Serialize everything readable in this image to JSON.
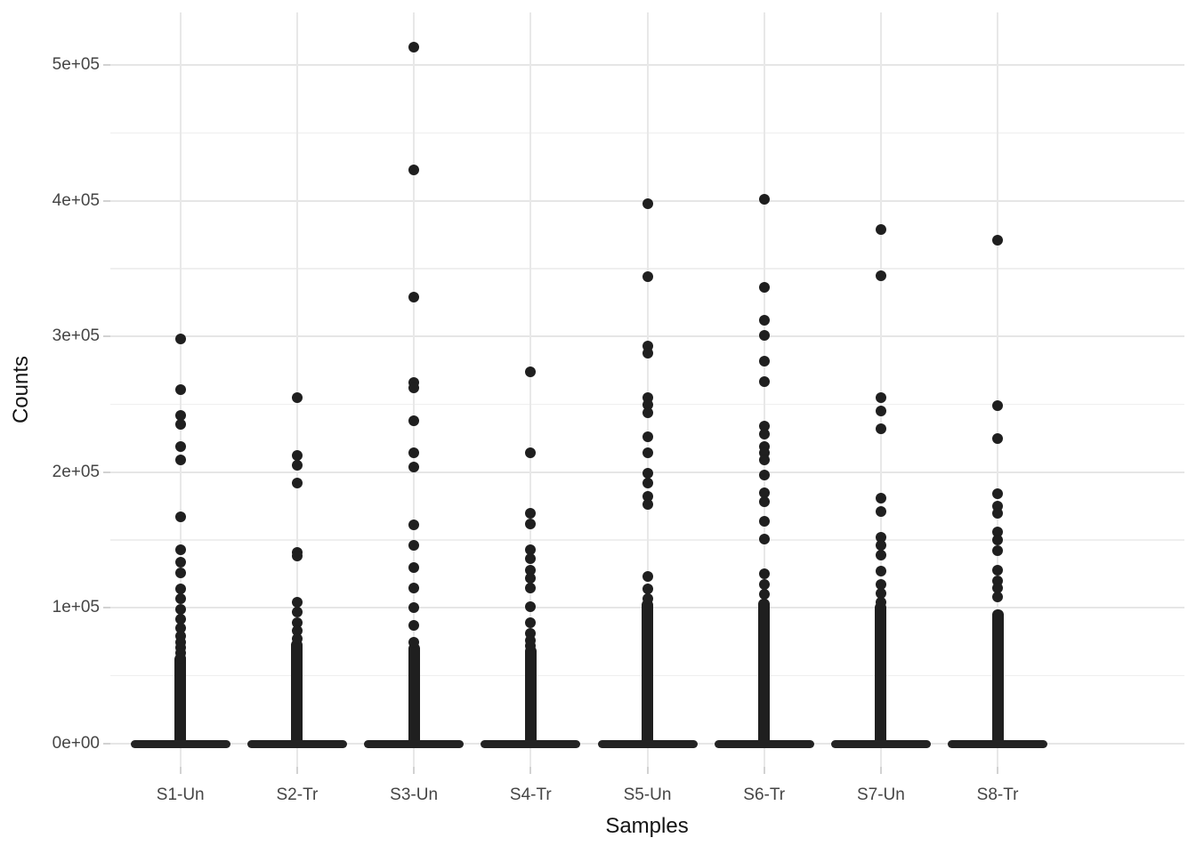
{
  "chart_data": {
    "type": "scatter",
    "variant": "strip-plot-with-collapsed-box-at-zero",
    "title": "",
    "xlabel": "Samples",
    "ylabel": "Counts",
    "grid": "on",
    "legend": "none",
    "point_color": "#1f1f1f",
    "background": "#ffffff",
    "ylim": [
      -17000,
      539000
    ],
    "y_tick_values": [
      0,
      100000,
      200000,
      300000,
      400000,
      500000
    ],
    "y_tick_labels": [
      "0e+00",
      "1e+05",
      "2e+05",
      "3e+05",
      "4e+05",
      "5e+05"
    ],
    "y_minor_tick_values": [
      50000,
      150000,
      250000,
      350000,
      450000
    ],
    "categories": [
      "S1-Un",
      "S2-Tr",
      "S3-Un",
      "S4-Tr",
      "S5-Un",
      "S6-Tr",
      "S7-Un",
      "S8-Tr"
    ],
    "series": [
      {
        "name": "S1-Un",
        "points": [
          298000,
          261000,
          242000,
          235000,
          219000,
          209000,
          167000,
          143000,
          134000,
          126000,
          114000,
          107000,
          99000,
          92000,
          85000,
          79000,
          75000,
          71000,
          67000,
          63000
        ],
        "dense_column_max": 62000,
        "zero_cluster": true
      },
      {
        "name": "S2-Tr",
        "points": [
          255000,
          212000,
          205000,
          192000,
          141000,
          138000,
          104000,
          97000,
          89000,
          83000,
          77000
        ],
        "dense_column_max": 73000,
        "zero_cluster": true
      },
      {
        "name": "S3-Un",
        "points": [
          513000,
          423000,
          329000,
          266000,
          262000,
          238000,
          214000,
          204000,
          161000,
          146000,
          130000,
          115000,
          100000,
          87000,
          75000
        ],
        "dense_column_max": 70000,
        "zero_cluster": true
      },
      {
        "name": "S4-Tr",
        "points": [
          274000,
          214000,
          170000,
          162000,
          143000,
          136000,
          128000,
          122000,
          115000,
          101000,
          89000,
          81000,
          76000,
          72000
        ],
        "dense_column_max": 68000,
        "zero_cluster": true
      },
      {
        "name": "S5-Un",
        "points": [
          398000,
          344000,
          293000,
          288000,
          255000,
          250000,
          244000,
          226000,
          214000,
          199000,
          192000,
          182000,
          176000,
          123000,
          114000,
          107000
        ],
        "dense_column_max": 102000,
        "zero_cluster": true
      },
      {
        "name": "S6-Tr",
        "points": [
          401000,
          336000,
          312000,
          301000,
          282000,
          267000,
          234000,
          228000,
          219000,
          214000,
          209000,
          198000,
          185000,
          178000,
          164000,
          151000,
          125000,
          117000,
          110000
        ],
        "dense_column_max": 103000,
        "zero_cluster": true
      },
      {
        "name": "S7-Un",
        "points": [
          379000,
          345000,
          255000,
          245000,
          232000,
          181000,
          171000,
          152000,
          146000,
          139000,
          127000,
          117000,
          111000,
          104000
        ],
        "dense_column_max": 100000,
        "zero_cluster": true
      },
      {
        "name": "S8-Tr",
        "points": [
          371000,
          249000,
          225000,
          184000,
          175000,
          170000,
          156000,
          150000,
          142000,
          128000,
          120000,
          115000,
          108000
        ],
        "dense_column_max": 95000,
        "zero_cluster": true
      }
    ]
  }
}
